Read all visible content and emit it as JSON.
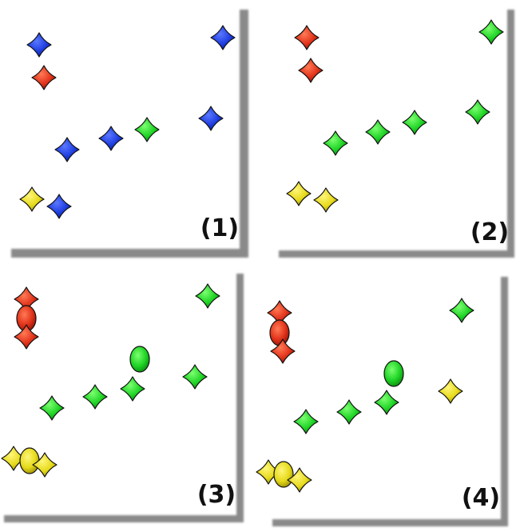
{
  "figure": {
    "panels": [
      {
        "label": "(1)",
        "items": [
          {
            "shape": "star",
            "color": "blue"
          },
          {
            "shape": "star",
            "color": "red"
          },
          {
            "shape": "star",
            "color": "blue"
          },
          {
            "shape": "star",
            "color": "blue"
          },
          {
            "shape": "star",
            "color": "green"
          },
          {
            "shape": "star",
            "color": "blue"
          },
          {
            "shape": "star",
            "color": "blue"
          },
          {
            "shape": "star",
            "color": "yellow"
          },
          {
            "shape": "star",
            "color": "blue"
          }
        ]
      },
      {
        "label": "(2)",
        "items": [
          {
            "shape": "star",
            "color": "red"
          },
          {
            "shape": "star",
            "color": "red"
          },
          {
            "shape": "star",
            "color": "green"
          },
          {
            "shape": "star",
            "color": "green"
          },
          {
            "shape": "star",
            "color": "green"
          },
          {
            "shape": "star",
            "color": "green"
          },
          {
            "shape": "star",
            "color": "green"
          },
          {
            "shape": "star",
            "color": "yellow"
          },
          {
            "shape": "star",
            "color": "yellow"
          }
        ]
      },
      {
        "label": "(3)",
        "items": [
          {
            "shape": "star",
            "color": "red"
          },
          {
            "shape": "ellipse",
            "color": "red"
          },
          {
            "shape": "star",
            "color": "red"
          },
          {
            "shape": "star",
            "color": "green"
          },
          {
            "shape": "ellipse",
            "color": "green"
          },
          {
            "shape": "star",
            "color": "green"
          },
          {
            "shape": "star",
            "color": "green"
          },
          {
            "shape": "star",
            "color": "green"
          },
          {
            "shape": "star",
            "color": "green"
          },
          {
            "shape": "star",
            "color": "yellow"
          },
          {
            "shape": "ellipse",
            "color": "yellow"
          },
          {
            "shape": "star",
            "color": "yellow"
          }
        ]
      },
      {
        "label": "(4)",
        "items": [
          {
            "shape": "star",
            "color": "red"
          },
          {
            "shape": "ellipse",
            "color": "red"
          },
          {
            "shape": "star",
            "color": "red"
          },
          {
            "shape": "star",
            "color": "green"
          },
          {
            "shape": "ellipse",
            "color": "green"
          },
          {
            "shape": "star",
            "color": "green"
          },
          {
            "shape": "star",
            "color": "green"
          },
          {
            "shape": "star",
            "color": "green"
          },
          {
            "shape": "star",
            "color": "yellow"
          },
          {
            "shape": "star",
            "color": "yellow"
          },
          {
            "shape": "ellipse",
            "color": "yellow"
          },
          {
            "shape": "star",
            "color": "yellow"
          }
        ]
      }
    ]
  },
  "colors": {
    "blue": {
      "fill": "#1f3ee0",
      "hi": "#5a78ff",
      "lo": "#0c1f9a"
    },
    "red": {
      "fill": "#e1321a",
      "hi": "#ff7a55",
      "lo": "#8f1406"
    },
    "green": {
      "fill": "#1fd425",
      "hi": "#7cff70",
      "lo": "#0a8a10"
    },
    "yellow": {
      "fill": "#e6da1a",
      "hi": "#fff67a",
      "lo": "#9a8c05"
    },
    "outline": "#111111",
    "frame": "#8a8a8a"
  }
}
